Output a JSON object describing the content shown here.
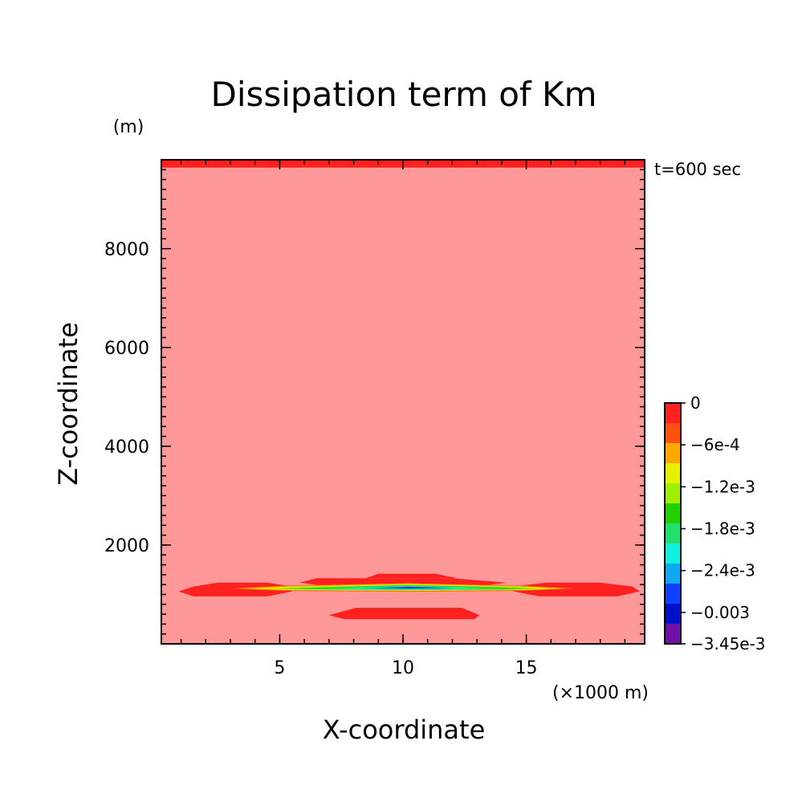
{
  "chart_data": {
    "type": "contour",
    "title": "Dissipation term of Km",
    "xlabel": "X-coordinate",
    "ylabel": "Z-coordinate",
    "x_unit": "(×1000 m)",
    "y_unit": "(m)",
    "time_label": "t=600 sec",
    "xlim": [
      0.2,
      19.8
    ],
    "ylim": [
      0,
      9800
    ],
    "x_ticks": [
      5,
      10,
      15
    ],
    "y_ticks": [
      2000,
      4000,
      6000,
      8000
    ],
    "x_minor_step": 1,
    "y_minor_step": 200,
    "background_color": "#ff9999",
    "colorbar": {
      "min": -0.00345,
      "max": 0,
      "levels": [
        0,
        -0.0003,
        -0.0006,
        -0.0009,
        -0.0012,
        -0.0015,
        -0.0018,
        -0.0021,
        -0.0024,
        -0.0027,
        -0.003,
        -0.00345
      ],
      "colors": [
        "#ff2020",
        "#ff5010",
        "#ffa800",
        "#e6f000",
        "#9ef000",
        "#20d000",
        "#20e070",
        "#10f0e0",
        "#10a8f0",
        "#1040ff",
        "#0010c8",
        "#7010a8"
      ],
      "labels": [
        {
          "value": 0,
          "text": "0"
        },
        {
          "value": -0.0006,
          "text": "−6e-4"
        },
        {
          "value": -0.0012,
          "text": "−1.2e-3"
        },
        {
          "value": -0.0018,
          "text": "−1.8e-3"
        },
        {
          "value": -0.0024,
          "text": "−2.4e-3"
        },
        {
          "value": -0.003,
          "text": "−0.003"
        },
        {
          "value": -0.00345,
          "text": "−3.45e-3"
        }
      ]
    },
    "regions": [
      {
        "level": 0,
        "points": [
          [
            0.2,
            9640
          ],
          [
            19.8,
            9640
          ],
          [
            19.8,
            9800
          ],
          [
            0.2,
            9800
          ]
        ]
      },
      {
        "level": 0,
        "points": [
          [
            0.9,
            1060
          ],
          [
            1.5,
            960
          ],
          [
            4.5,
            960
          ],
          [
            5.5,
            1060
          ],
          [
            5.5,
            1160
          ],
          [
            4.5,
            1240
          ],
          [
            2.5,
            1240
          ],
          [
            1.5,
            1160
          ]
        ]
      },
      {
        "level": 0,
        "points": [
          [
            14.5,
            1060
          ],
          [
            15.5,
            960
          ],
          [
            18.7,
            960
          ],
          [
            19.6,
            1060
          ],
          [
            19.3,
            1160
          ],
          [
            18.0,
            1240
          ],
          [
            15.8,
            1240
          ],
          [
            14.5,
            1160
          ]
        ]
      },
      {
        "level": 0,
        "points": [
          [
            5.8,
            1240
          ],
          [
            6.5,
            1330
          ],
          [
            12.0,
            1330
          ],
          [
            14.2,
            1240
          ],
          [
            13.0,
            1160
          ],
          [
            7.0,
            1160
          ]
        ]
      },
      {
        "level": 0,
        "points": [
          [
            8.5,
            1330
          ],
          [
            9.0,
            1420
          ],
          [
            11.3,
            1420
          ],
          [
            12.2,
            1330
          ]
        ]
      },
      {
        "level": 0,
        "points": [
          [
            7.0,
            580
          ],
          [
            7.6,
            500
          ],
          [
            12.9,
            500
          ],
          [
            13.1,
            580
          ],
          [
            12.4,
            730
          ],
          [
            8.1,
            730
          ],
          [
            7.5,
            650
          ]
        ]
      },
      {
        "level": -0.0003,
        "points": [
          [
            3.0,
            1120
          ],
          [
            5,
            1075
          ],
          [
            10.2,
            1055
          ],
          [
            15,
            1075
          ],
          [
            17.0,
            1120
          ],
          [
            15,
            1175
          ],
          [
            10.2,
            1230
          ],
          [
            5,
            1175
          ]
        ]
      },
      {
        "level": -0.0006,
        "points": [
          [
            3.2,
            1120
          ],
          [
            5,
            1085
          ],
          [
            10.2,
            1065
          ],
          [
            15,
            1085
          ],
          [
            16.8,
            1120
          ],
          [
            15,
            1165
          ],
          [
            10.2,
            1220
          ],
          [
            5,
            1165
          ]
        ]
      },
      {
        "level": -0.0009,
        "points": [
          [
            3.6,
            1120
          ],
          [
            5.5,
            1092
          ],
          [
            10.2,
            1075
          ],
          [
            14.8,
            1092
          ],
          [
            16.4,
            1120
          ],
          [
            14.8,
            1158
          ],
          [
            10.2,
            1210
          ],
          [
            5.5,
            1158
          ]
        ]
      },
      {
        "level": -0.0012,
        "points": [
          [
            4.3,
            1120
          ],
          [
            6,
            1098
          ],
          [
            10.2,
            1085
          ],
          [
            14.5,
            1098
          ],
          [
            15.8,
            1120
          ],
          [
            14.5,
            1150
          ],
          [
            10.2,
            1198
          ],
          [
            6,
            1150
          ]
        ]
      },
      {
        "level": -0.0015,
        "points": [
          [
            5.0,
            1120
          ],
          [
            7,
            1103
          ],
          [
            10.2,
            1093
          ],
          [
            13.8,
            1103
          ],
          [
            15.2,
            1120
          ],
          [
            13.8,
            1145
          ],
          [
            10.2,
            1188
          ],
          [
            7,
            1145
          ]
        ]
      },
      {
        "level": -0.0018,
        "points": [
          [
            5.8,
            1122
          ],
          [
            7.5,
            1107
          ],
          [
            10.2,
            1100
          ],
          [
            13.2,
            1107
          ],
          [
            14.5,
            1122
          ],
          [
            13.2,
            1140
          ],
          [
            10.2,
            1178
          ],
          [
            7.5,
            1140
          ]
        ]
      },
      {
        "level": -0.0021,
        "points": [
          [
            7.0,
            1125
          ],
          [
            8.3,
            1112
          ],
          [
            10.2,
            1108
          ],
          [
            12.3,
            1112
          ],
          [
            13.3,
            1125
          ],
          [
            12.3,
            1140
          ],
          [
            10.2,
            1168
          ],
          [
            8.3,
            1140
          ]
        ]
      },
      {
        "level": -0.0024,
        "points": [
          [
            8.2,
            1130
          ],
          [
            9.2,
            1118
          ],
          [
            10.2,
            1115
          ],
          [
            11.5,
            1118
          ],
          [
            12.2,
            1130
          ],
          [
            11.5,
            1143
          ],
          [
            10.2,
            1158
          ],
          [
            9.2,
            1143
          ]
        ]
      },
      {
        "level": -0.0027,
        "points": [
          [
            9.0,
            1135
          ],
          [
            9.7,
            1125
          ],
          [
            10.3,
            1122
          ],
          [
            11.0,
            1125
          ],
          [
            11.6,
            1135
          ],
          [
            11.0,
            1145
          ],
          [
            10.3,
            1152
          ],
          [
            9.7,
            1145
          ]
        ]
      },
      {
        "level": -0.003,
        "points": [
          [
            9.6,
            1138
          ],
          [
            10.0,
            1131
          ],
          [
            10.4,
            1130
          ],
          [
            10.8,
            1131
          ],
          [
            11.1,
            1138
          ],
          [
            10.8,
            1143
          ],
          [
            10.4,
            1146
          ],
          [
            10.0,
            1143
          ]
        ]
      }
    ]
  }
}
